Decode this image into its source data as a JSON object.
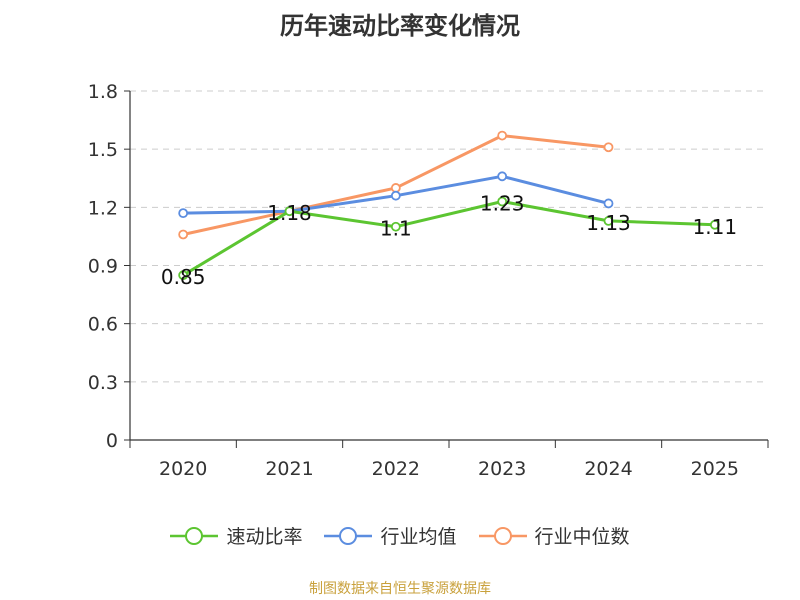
{
  "title": "历年速动比率变化情况",
  "source": "制图数据来自恒生聚源数据库",
  "colors": {
    "source_text": "#c9a13c",
    "axis": "#333333",
    "grid": "#cccccc"
  },
  "chart_data": {
    "type": "line",
    "categories": [
      "2020",
      "2021",
      "2022",
      "2023",
      "2024",
      "2025"
    ],
    "ylim": [
      0,
      1.8
    ],
    "yticks": [
      "0",
      "0.3",
      "0.6",
      "0.9",
      "1.2",
      "1.5",
      "1.8"
    ],
    "ytick_values": [
      0,
      0.3,
      0.6,
      0.9,
      1.2,
      1.5,
      1.8
    ],
    "grid": true,
    "legend_position": "bottom",
    "series": [
      {
        "name": "速动比率",
        "color": "#5cc531",
        "values": [
          0.85,
          1.18,
          1.1,
          1.23,
          1.13,
          1.11
        ],
        "labels": [
          "0.85",
          "1.18",
          "1.1",
          "1.23",
          "1.13",
          "1.11"
        ]
      },
      {
        "name": "行业均值",
        "color": "#5b8de0",
        "values": [
          1.17,
          1.18,
          1.26,
          1.36,
          1.22,
          null
        ]
      },
      {
        "name": "行业中位数",
        "color": "#f89764",
        "values": [
          1.06,
          1.18,
          1.3,
          1.57,
          1.51,
          null
        ]
      }
    ]
  }
}
